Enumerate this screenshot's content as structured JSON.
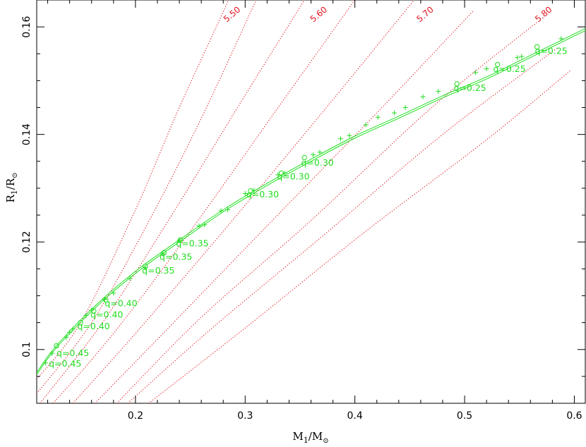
{
  "chart_data": {
    "type": "line",
    "xlabel": {
      "main": "M",
      "sub": "1",
      "slash": "/M",
      "sun": "⊙"
    },
    "ylabel": {
      "main": "R",
      "sub": "1",
      "slash": "/R",
      "sun": "⊙"
    },
    "xlim": [
      0.11,
      0.61
    ],
    "ylim": [
      0.09,
      0.165
    ],
    "xticks": [
      0.2,
      0.3,
      0.4,
      0.5,
      0.6
    ],
    "xtick_labels": [
      "0.2",
      "0.3",
      "0.4",
      "0.5",
      "0.6"
    ],
    "yticks": [
      0.1,
      0.12,
      0.14,
      0.16
    ],
    "ytick_labels": [
      "0.1",
      "0.12",
      "0.14",
      "0.16"
    ],
    "colors": {
      "main_curve": "#22dd22",
      "contours": "#e0141e",
      "axes": "#000000"
    },
    "main_curve": {
      "x": [
        0.11,
        0.12,
        0.13,
        0.15,
        0.17,
        0.19,
        0.21,
        0.24,
        0.28,
        0.32,
        0.36,
        0.4,
        0.44,
        0.48,
        0.52,
        0.56,
        0.61
      ],
      "y": [
        0.0955,
        0.0985,
        0.101,
        0.1053,
        0.1092,
        0.1127,
        0.1159,
        0.1202,
        0.1258,
        0.1307,
        0.1352,
        0.1395,
        0.1432,
        0.147,
        0.1505,
        0.1545,
        0.1595
      ]
    },
    "contours": [
      {
        "label": "5.50",
        "x": [
          0.11,
          0.15,
          0.2,
          0.24,
          0.285
        ],
        "y": [
          0.0945,
          0.105,
          0.126,
          0.145,
          0.165
        ]
      },
      {
        "label": "",
        "x": [
          0.11,
          0.16,
          0.21,
          0.26,
          0.31
        ],
        "y": [
          0.0918,
          0.105,
          0.123,
          0.143,
          0.165
        ]
      },
      {
        "label": "5.60",
        "x": [
          0.113,
          0.17,
          0.23,
          0.29,
          0.354
        ],
        "y": [
          0.09,
          0.105,
          0.124,
          0.144,
          0.165
        ]
      },
      {
        "label": "",
        "x": [
          0.125,
          0.18,
          0.25,
          0.33,
          0.4
        ],
        "y": [
          0.09,
          0.103,
          0.122,
          0.145,
          0.165
        ]
      },
      {
        "label": "5.70",
        "x": [
          0.143,
          0.2,
          0.28,
          0.37,
          0.454
        ],
        "y": [
          0.09,
          0.103,
          0.122,
          0.144,
          0.165
        ]
      },
      {
        "label": "",
        "x": [
          0.163,
          0.23,
          0.32,
          0.42,
          0.508
        ],
        "y": [
          0.09,
          0.104,
          0.123,
          0.144,
          0.163
        ]
      },
      {
        "label": "5.80",
        "x": [
          0.183,
          0.26,
          0.36,
          0.47,
          0.567
        ],
        "y": [
          0.09,
          0.106,
          0.124,
          0.145,
          0.161
        ]
      },
      {
        "label": "",
        "x": [
          0.193,
          0.27,
          0.37,
          0.48,
          0.584
        ],
        "y": [
          0.09,
          0.104,
          0.121,
          0.14,
          0.156
        ]
      },
      {
        "label": "",
        "x": [
          0.212,
          0.3,
          0.41,
          0.52,
          0.597
        ],
        "y": [
          0.09,
          0.104,
          0.122,
          0.139,
          0.152
        ]
      }
    ],
    "contour_labels": [
      {
        "text": "5.50",
        "x": 0.283,
        "y": 0.1608
      },
      {
        "text": "5.60",
        "x": 0.362,
        "y": 0.1608
      },
      {
        "text": "5.70",
        "x": 0.459,
        "y": 0.1608
      },
      {
        "text": "5.80",
        "x": 0.567,
        "y": 0.1608
      }
    ],
    "plus_markers": [
      {
        "x": 0.118,
        "y": 0.0975
      },
      {
        "x": 0.124,
        "y": 0.0993
      },
      {
        "x": 0.137,
        "y": 0.1023
      },
      {
        "x": 0.14,
        "y": 0.1032
      },
      {
        "x": 0.143,
        "y": 0.1038
      },
      {
        "x": 0.155,
        "y": 0.1063
      },
      {
        "x": 0.16,
        "y": 0.1073
      },
      {
        "x": 0.172,
        "y": 0.1093
      },
      {
        "x": 0.18,
        "y": 0.1105
      },
      {
        "x": 0.195,
        "y": 0.1132
      },
      {
        "x": 0.209,
        "y": 0.1152
      },
      {
        "x": 0.225,
        "y": 0.1178
      },
      {
        "x": 0.24,
        "y": 0.1203
      },
      {
        "x": 0.258,
        "y": 0.123
      },
      {
        "x": 0.263,
        "y": 0.1232
      },
      {
        "x": 0.278,
        "y": 0.1258
      },
      {
        "x": 0.284,
        "y": 0.126
      },
      {
        "x": 0.3,
        "y": 0.129
      },
      {
        "x": 0.308,
        "y": 0.1296
      },
      {
        "x": 0.33,
        "y": 0.1325
      },
      {
        "x": 0.336,
        "y": 0.1328
      },
      {
        "x": 0.362,
        "y": 0.1362
      },
      {
        "x": 0.368,
        "y": 0.1367
      },
      {
        "x": 0.387,
        "y": 0.1392
      },
      {
        "x": 0.395,
        "y": 0.1398
      },
      {
        "x": 0.41,
        "y": 0.1418
      },
      {
        "x": 0.421,
        "y": 0.1432
      },
      {
        "x": 0.436,
        "y": 0.144
      },
      {
        "x": 0.446,
        "y": 0.145
      },
      {
        "x": 0.462,
        "y": 0.147
      },
      {
        "x": 0.476,
        "y": 0.148
      },
      {
        "x": 0.51,
        "y": 0.1515
      },
      {
        "x": 0.52,
        "y": 0.1522
      },
      {
        "x": 0.548,
        "y": 0.1543
      },
      {
        "x": 0.552,
        "y": 0.1545
      },
      {
        "x": 0.588,
        "y": 0.1578
      }
    ],
    "circle_markers": [
      {
        "x": 0.128,
        "y": 0.1007
      },
      {
        "x": 0.15,
        "y": 0.105
      },
      {
        "x": 0.162,
        "y": 0.1072
      },
      {
        "x": 0.173,
        "y": 0.1092
      },
      {
        "x": 0.209,
        "y": 0.1155
      },
      {
        "x": 0.226,
        "y": 0.118
      },
      {
        "x": 0.241,
        "y": 0.1204
      },
      {
        "x": 0.305,
        "y": 0.1295
      },
      {
        "x": 0.333,
        "y": 0.1328
      },
      {
        "x": 0.354,
        "y": 0.1357
      },
      {
        "x": 0.493,
        "y": 0.1494
      },
      {
        "x": 0.53,
        "y": 0.153
      },
      {
        "x": 0.566,
        "y": 0.1563
      }
    ],
    "q_labels": [
      {
        "text": "q=0.45",
        "x": 0.121,
        "y": 0.0968
      },
      {
        "text": "q=0.45",
        "x": 0.128,
        "y": 0.0988
      },
      {
        "text": "q=0.40",
        "x": 0.147,
        "y": 0.1038
      },
      {
        "text": "q=0.40",
        "x": 0.159,
        "y": 0.1059
      },
      {
        "text": "q=0.40",
        "x": 0.172,
        "y": 0.108
      },
      {
        "text": "q=0.35",
        "x": 0.206,
        "y": 0.1141
      },
      {
        "text": "q=0.35",
        "x": 0.222,
        "y": 0.1167
      },
      {
        "text": "q=0.35",
        "x": 0.237,
        "y": 0.1192
      },
      {
        "text": "q=0.30",
        "x": 0.301,
        "y": 0.1283
      },
      {
        "text": "q=0.30",
        "x": 0.329,
        "y": 0.1316
      },
      {
        "text": "q=0.30",
        "x": 0.351,
        "y": 0.1342
      },
      {
        "text": "q=0.25",
        "x": 0.49,
        "y": 0.1481
      },
      {
        "text": "q=0.25",
        "x": 0.526,
        "y": 0.1516
      },
      {
        "text": "q=0.25",
        "x": 0.564,
        "y": 0.155
      }
    ]
  }
}
